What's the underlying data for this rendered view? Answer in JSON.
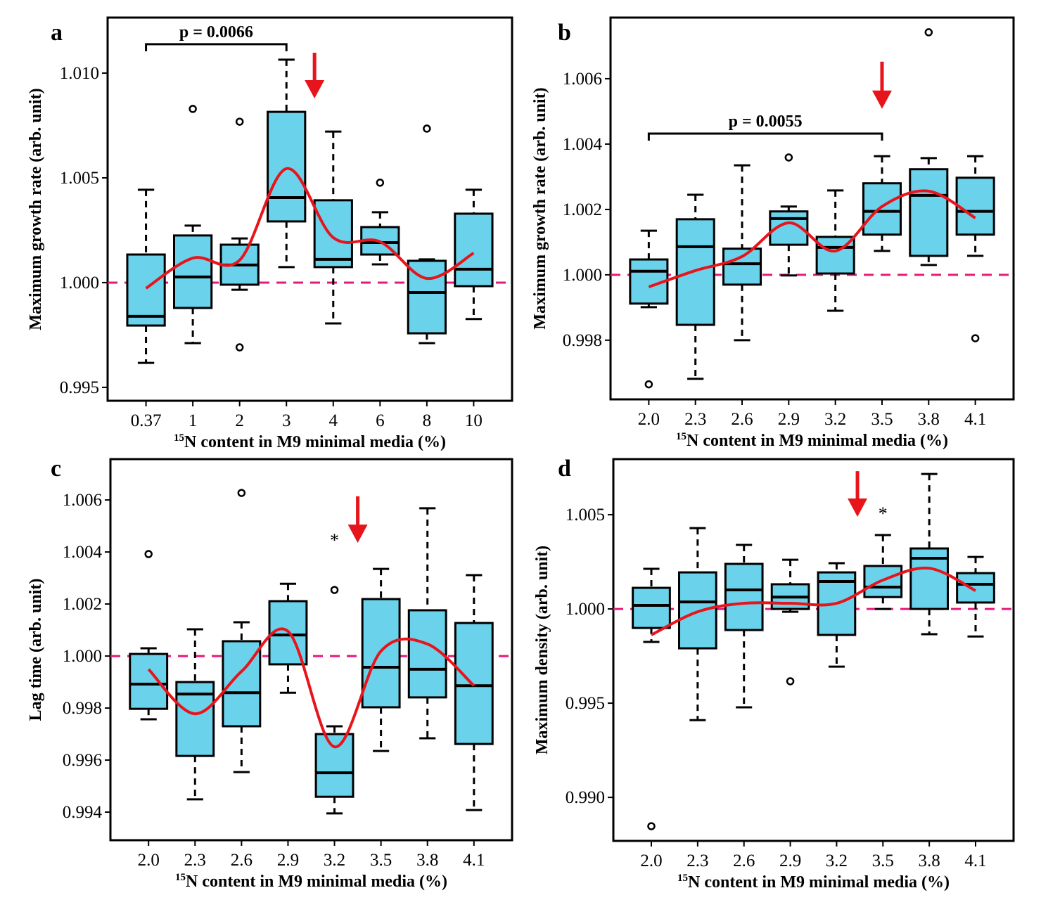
{
  "colors": {
    "box": "#6ad2ea",
    "smooth": "#e8141b",
    "reference": "#e6197a",
    "arrow": "#e8141b"
  },
  "chart_data": [
    {
      "type": "box",
      "panel": "a",
      "ylabel": "Maximum growth rate (arb. unit)",
      "xlabel_sup": "15",
      "xlabel": "N content in M9 minimal media (%)",
      "categories": [
        "0.37",
        "1",
        "2",
        "3",
        "4",
        "6",
        "8",
        "10"
      ],
      "ylim": [
        0.99436,
        1.01265
      ],
      "yticks": [
        "0.995",
        "1.000",
        "1.005",
        "1.010"
      ],
      "yticks_values": [
        0.995,
        1.0,
        1.005,
        1.01
      ],
      "reference_line": 1.0,
      "boxes": [
        {
          "low": 0.99617,
          "q1": 0.99795,
          "median": 0.99839,
          "q3": 1.00134,
          "high": 1.00443,
          "outliers": []
        },
        {
          "low": 0.99711,
          "q1": 0.99879,
          "median": 1.00027,
          "q3": 1.00225,
          "high": 1.00272,
          "outliers": [
            1.00829
          ]
        },
        {
          "low": 0.99966,
          "q1": 0.9999,
          "median": 1.00084,
          "q3": 1.00181,
          "high": 1.00211,
          "outliers": [
            1.00768,
            0.99691
          ]
        },
        {
          "low": 1.00074,
          "q1": 1.00292,
          "median": 1.00406,
          "q3": 1.00815,
          "high": 1.01064,
          "outliers": []
        },
        {
          "low": 0.99805,
          "q1": 1.00074,
          "median": 1.00111,
          "q3": 1.00393,
          "high": 1.00721,
          "outliers": []
        },
        {
          "low": 1.00087,
          "q1": 1.00134,
          "median": 1.00191,
          "q3": 1.00265,
          "high": 1.00336,
          "outliers": [
            1.00477
          ]
        },
        {
          "low": 0.99711,
          "q1": 0.99758,
          "median": 0.99953,
          "q3": 1.00104,
          "high": 1.00111,
          "outliers": [
            1.00735
          ]
        },
        {
          "low": 0.99826,
          "q1": 0.99983,
          "median": 1.00064,
          "q3": 1.00329,
          "high": 1.00443,
          "outliers": []
        }
      ],
      "smooth": [
        0.99973,
        1.00117,
        1.00107,
        1.00544,
        1.00215,
        1.00195,
        1.0002,
        1.00141
      ],
      "bracket": {
        "text": "p = 0.0066",
        "from": 1,
        "to": 4,
        "y": 1.01138
      },
      "arrow": {
        "x": 4.6,
        "from": 1.01097,
        "to": 1.00879
      },
      "asterisk": null
    },
    {
      "type": "box",
      "panel": "b",
      "ylabel": "Maximum growth rate (arb. unit)",
      "xlabel_sup": "15",
      "xlabel": "N content in M9 minimal media (%)",
      "categories": [
        "2.0",
        "2.3",
        "2.6",
        "2.9",
        "3.2",
        "3.5",
        "3.8",
        "4.1"
      ],
      "ylim": [
        0.99619,
        1.00787
      ],
      "yticks": [
        "0.998",
        "1.000",
        "1.002",
        "1.004",
        "1.006"
      ],
      "yticks_values": [
        0.998,
        1.0,
        1.002,
        1.004,
        1.006
      ],
      "reference_line": 1.0,
      "boxes": [
        {
          "low": 0.99901,
          "q1": 0.99912,
          "median": 1.00011,
          "q3": 1.00047,
          "high": 1.00135,
          "outliers": [
            0.99665
          ]
        },
        {
          "low": 0.99682,
          "q1": 0.99847,
          "median": 1.00086,
          "q3": 1.0017,
          "high": 1.00245,
          "outliers": []
        },
        {
          "low": 0.998,
          "q1": 0.9997,
          "median": 1.00034,
          "q3": 1.0008,
          "high": 1.00335,
          "outliers": []
        },
        {
          "low": 0.99998,
          "q1": 1.00092,
          "median": 1.00172,
          "q3": 1.00194,
          "high": 1.00209,
          "outliers": [
            1.00359
          ]
        },
        {
          "low": 0.9989,
          "q1": 1.00004,
          "median": 1.00084,
          "q3": 1.00116,
          "high": 1.00258,
          "outliers": []
        },
        {
          "low": 1.00073,
          "q1": 1.00123,
          "median": 1.00194,
          "q3": 1.0028,
          "high": 1.00363,
          "outliers": []
        },
        {
          "low": 1.0003,
          "q1": 1.00058,
          "median": 1.00243,
          "q3": 1.00323,
          "high": 1.00357,
          "outliers": [
            1.00742
          ]
        },
        {
          "low": 1.00058,
          "q1": 1.00123,
          "median": 1.00194,
          "q3": 1.00297,
          "high": 1.00363,
          "outliers": [
            0.99806
          ]
        }
      ],
      "smooth": [
        0.99963,
        1.00013,
        1.00056,
        1.00159,
        1.00073,
        1.00209,
        1.00256,
        1.00174
      ],
      "bracket": {
        "text": "p = 0.0055",
        "from": 1,
        "to": 6,
        "y": 1.00432
      },
      "arrow": {
        "x": 6,
        "from": 1.00652,
        "to": 1.00508
      },
      "asterisk": null
    },
    {
      "type": "box",
      "panel": "c",
      "ylabel": "Lag time (arb. unit)",
      "xlabel_sup": "15",
      "xlabel": "N content in M9 minimal media (%)",
      "categories": [
        "2.0",
        "2.3",
        "2.6",
        "2.9",
        "3.2",
        "3.5",
        "3.8",
        "4.1"
      ],
      "ylim": [
        0.99292,
        1.00757
      ],
      "yticks": [
        "0.994",
        "0.996",
        "0.998",
        "1.000",
        "1.002",
        "1.004",
        "1.006"
      ],
      "yticks_values": [
        0.994,
        0.996,
        0.998,
        1.0,
        1.002,
        1.004,
        1.006
      ],
      "reference_line": 1.0,
      "boxes": [
        {
          "low": 0.99757,
          "q1": 0.99797,
          "median": 0.99892,
          "q3": 1.00008,
          "high": 1.0003,
          "outliers": [
            1.00392
          ]
        },
        {
          "low": 0.99449,
          "q1": 0.99616,
          "median": 0.99854,
          "q3": 0.999,
          "high": 1.00103,
          "outliers": []
        },
        {
          "low": 0.99554,
          "q1": 0.9973,
          "median": 0.99859,
          "q3": 1.00057,
          "high": 1.0013,
          "outliers": [
            1.00627
          ]
        },
        {
          "low": 0.99859,
          "q1": 0.99968,
          "median": 1.00081,
          "q3": 1.00211,
          "high": 1.00278,
          "outliers": []
        },
        {
          "low": 0.99395,
          "q1": 0.99459,
          "median": 0.99551,
          "q3": 0.997,
          "high": 0.9973,
          "outliers": [
            1.00254
          ]
        },
        {
          "low": 0.99635,
          "q1": 0.99803,
          "median": 0.99957,
          "q3": 1.00219,
          "high": 1.00335,
          "outliers": []
        },
        {
          "low": 0.99684,
          "q1": 0.99841,
          "median": 0.99949,
          "q3": 1.00176,
          "high": 1.00568,
          "outliers": []
        },
        {
          "low": 0.99408,
          "q1": 0.99662,
          "median": 0.99886,
          "q3": 1.00127,
          "high": 1.00311,
          "outliers": []
        }
      ],
      "smooth": [
        0.99949,
        0.99778,
        0.99941,
        1.00095,
        0.99651,
        1.00019,
        1.00046,
        0.99886
      ],
      "bracket": null,
      "arrow": {
        "x": 5.5,
        "from": 1.00614,
        "to": 1.00435
      },
      "asterisk": {
        "text": "*",
        "x": 5,
        "y": 1.0046
      }
    },
    {
      "type": "box",
      "panel": "d",
      "ylabel": "Maximum density (arb. unit)",
      "xlabel_sup": "15",
      "xlabel": "N content in M9 minimal media (%)",
      "categories": [
        "2.0",
        "2.3",
        "2.6",
        "2.9",
        "3.2",
        "3.5",
        "3.8",
        "4.1"
      ],
      "ylim": [
        0.98769,
        1.00795
      ],
      "yticks": [
        "0.990",
        "0.995",
        "1.000",
        "1.005"
      ],
      "yticks_values": [
        0.99,
        0.995,
        1.0,
        1.005
      ],
      "reference_line": 1.0,
      "boxes": [
        {
          "low": 0.99825,
          "q1": 0.99899,
          "median": 1.00019,
          "q3": 1.00112,
          "high": 1.00213,
          "outliers": [
            0.98847
          ]
        },
        {
          "low": 0.9941,
          "q1": 0.99791,
          "median": 1.00037,
          "q3": 1.00194,
          "high": 1.00429,
          "outliers": []
        },
        {
          "low": 0.99478,
          "q1": 0.99888,
          "median": 1.00101,
          "q3": 1.00239,
          "high": 1.0034,
          "outliers": []
        },
        {
          "low": 0.99985,
          "q1": 1.0,
          "median": 1.00063,
          "q3": 1.00131,
          "high": 1.00261,
          "outliers": [
            0.99616
          ]
        },
        {
          "low": 0.99694,
          "q1": 0.99862,
          "median": 1.00146,
          "q3": 1.00194,
          "high": 1.00243,
          "outliers": []
        },
        {
          "low": 1.0,
          "q1": 1.00063,
          "median": 1.00116,
          "q3": 1.00228,
          "high": 1.00392,
          "outliers": []
        },
        {
          "low": 0.99866,
          "q1": 1.0,
          "median": 1.00269,
          "q3": 1.00321,
          "high": 1.00716,
          "outliers": []
        },
        {
          "low": 0.99854,
          "q1": 1.00034,
          "median": 1.00131,
          "q3": 1.0019,
          "high": 1.00276,
          "outliers": []
        }
      ],
      "smooth": [
        0.99862,
        0.99985,
        1.0003,
        1.0003,
        1.0003,
        1.00153,
        1.00216,
        1.00097
      ],
      "bracket": null,
      "arrow": {
        "x": 5.45,
        "from": 1.00731,
        "to": 1.00489
      },
      "asterisk": {
        "text": "*",
        "x": 6,
        "y": 1.00526
      }
    }
  ]
}
